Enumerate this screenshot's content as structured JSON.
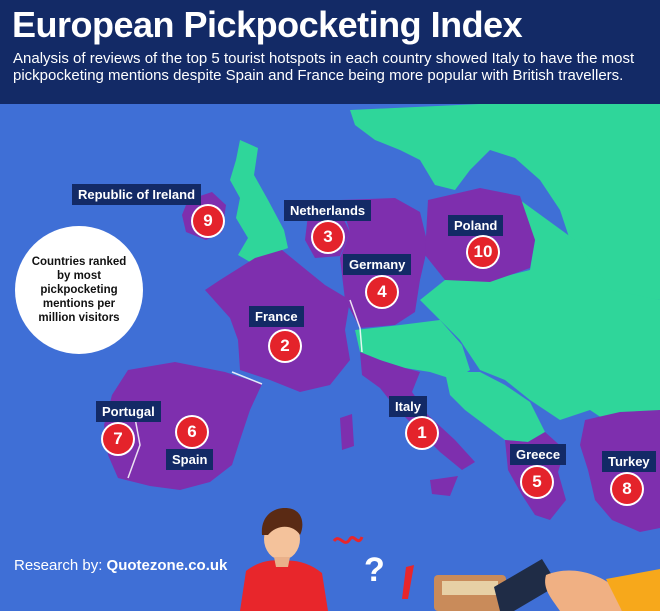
{
  "title": "European Pickpocketing Index",
  "subtitle": "Analysis of reviews of the top 5 tourist hotspots in each country showed Italy to have the most pickpocketing mentions despite Spain and France being more popular with British travellers.",
  "legend": "Countries ranked by most pickpocketing mentions per million visitors",
  "credit": {
    "prefix": "Research by: ",
    "source": "Quotezone.co.uk"
  },
  "colors": {
    "background": "#3f6fd6",
    "header": "#132a66",
    "ranked_country": "#7e2fae",
    "other_land": "#2fd69a",
    "rank_marker": "#e4232b"
  },
  "countries": [
    {
      "name": "Italy",
      "rank": "1"
    },
    {
      "name": "France",
      "rank": "2"
    },
    {
      "name": "Netherlands",
      "rank": "3"
    },
    {
      "name": "Germany",
      "rank": "4"
    },
    {
      "name": "Greece",
      "rank": "5"
    },
    {
      "name": "Spain",
      "rank": "6"
    },
    {
      "name": "Portugal",
      "rank": "7"
    },
    {
      "name": "Turkey",
      "rank": "8"
    },
    {
      "name": "Republic of Ireland",
      "rank": "9"
    },
    {
      "name": "Poland",
      "rank": "10"
    }
  ]
}
